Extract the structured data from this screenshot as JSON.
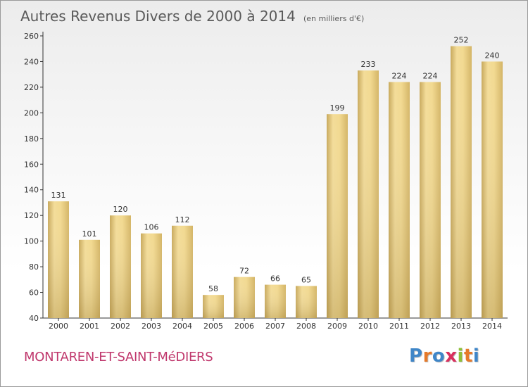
{
  "header": {
    "title": "Autres Revenus Divers de 2000 à 2014",
    "unit": "(en milliers d'€)"
  },
  "footer": {
    "commune": "MONTAREN-ET-SAINT-MéDIERS",
    "logo_letters": [
      "P",
      "r",
      "o",
      "x",
      "i",
      "t",
      "i"
    ],
    "logo_colors": [
      "#3f86c8",
      "#e67a2a",
      "#3f86c8",
      "#d92f5e",
      "#8fbf3a",
      "#e67a2a",
      "#3f86c8"
    ]
  },
  "chart_data": {
    "type": "bar",
    "categories": [
      "2000",
      "2001",
      "2002",
      "2003",
      "2004",
      "2005",
      "2006",
      "2007",
      "2008",
      "2009",
      "2010",
      "2011",
      "2012",
      "2013",
      "2014"
    ],
    "values": [
      131,
      101,
      120,
      106,
      112,
      58,
      72,
      66,
      65,
      199,
      233,
      224,
      224,
      252,
      240
    ],
    "ylim": [
      40,
      260
    ],
    "yticks": [
      40,
      60,
      80,
      100,
      120,
      140,
      160,
      180,
      200,
      220,
      240,
      260
    ],
    "grid": false,
    "bar_color": "#e9cf85"
  }
}
